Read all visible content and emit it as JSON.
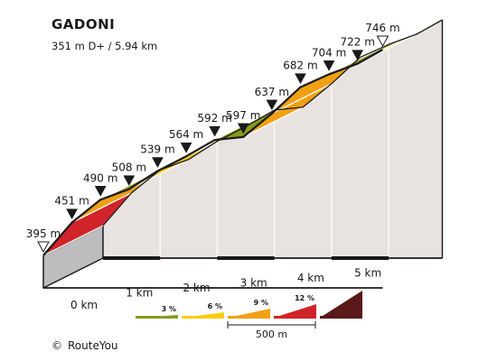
{
  "chart_data": {
    "type": "area",
    "title": "GADONI",
    "subtitle": "351 m D+ / 5.94 km",
    "points": [
      {
        "km": 0.0,
        "elev": 395,
        "label": "395 m",
        "marker": "open"
      },
      {
        "km": 0.5,
        "elev": 451,
        "label": "451 m",
        "marker": "filled"
      },
      {
        "km": 1.0,
        "elev": 490,
        "label": "490 m",
        "marker": "filled"
      },
      {
        "km": 1.5,
        "elev": 508,
        "label": "508 m",
        "marker": "filled"
      },
      {
        "km": 2.0,
        "elev": 539,
        "label": "539 m",
        "marker": "filled"
      },
      {
        "km": 2.5,
        "elev": 564,
        "label": "564 m",
        "marker": "filled"
      },
      {
        "km": 3.0,
        "elev": 592,
        "label": "592 m",
        "marker": "filled"
      },
      {
        "km": 3.5,
        "elev": 597,
        "label": "597 m",
        "marker": "filled"
      },
      {
        "km": 4.0,
        "elev": 637,
        "label": "637 m",
        "marker": "filled"
      },
      {
        "km": 4.5,
        "elev": 682,
        "label": "682 m",
        "marker": "filled"
      },
      {
        "km": 5.0,
        "elev": 704,
        "label": "704 m",
        "marker": "filled"
      },
      {
        "km": 5.5,
        "elev": 722,
        "label": "722 m",
        "marker": "filled"
      },
      {
        "km": 5.94,
        "elev": 746,
        "label": "746 m",
        "marker": "open"
      }
    ],
    "x_ticks": [
      "0 km",
      "1 km",
      "2 km",
      "3 km",
      "4 km",
      "5 km"
    ],
    "legend": {
      "items": [
        {
          "label": "3 %",
          "color": "#8a9a1e"
        },
        {
          "label": "6 %",
          "color": "#fccc10"
        },
        {
          "label": "9 %",
          "color": "#f0a012"
        },
        {
          "label": "12 %",
          "color": "#d1232a"
        },
        {
          "label": "",
          "color": "#5a1818"
        }
      ],
      "scale_label": "500 m"
    }
  },
  "credit": {
    "symbol": "©",
    "text": "RouteYou"
  },
  "colors": {
    "side_wall": "#e8e3e1",
    "outline": "#1a1a1a",
    "gray_face": "#bdbdbd"
  }
}
